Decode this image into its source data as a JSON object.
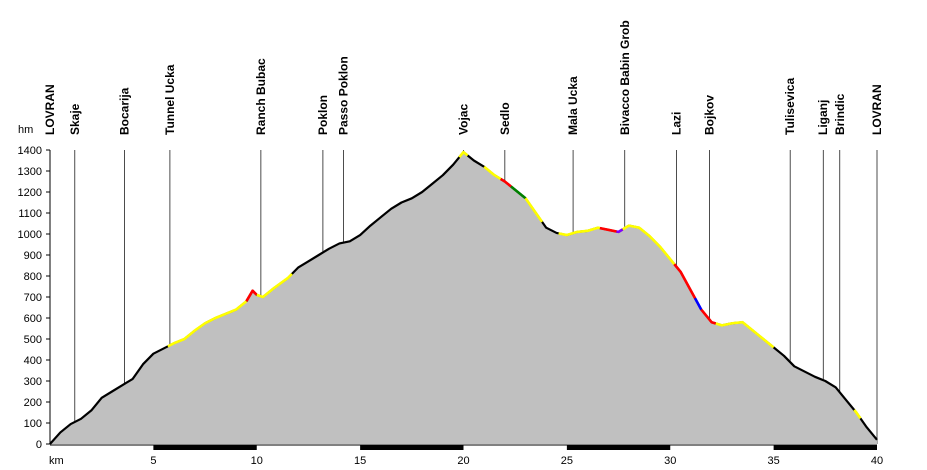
{
  "chart_data": {
    "type": "area",
    "title": "",
    "xlabel": "km",
    "ylabel": "hm",
    "xlim": [
      0,
      40
    ],
    "ylim": [
      0,
      1400
    ],
    "x_ticks": [
      5,
      10,
      15,
      20,
      25,
      30,
      35,
      40
    ],
    "y_ticks": [
      0,
      100,
      200,
      300,
      400,
      500,
      600,
      700,
      800,
      900,
      1000,
      1100,
      1200,
      1300,
      1400
    ],
    "grid": false,
    "fill_color": "#c0c0c0",
    "line_color": "#000000",
    "profile": [
      {
        "x": 0.0,
        "y": 0
      },
      {
        "x": 0.5,
        "y": 55
      },
      {
        "x": 1.0,
        "y": 95
      },
      {
        "x": 1.5,
        "y": 120
      },
      {
        "x": 2.0,
        "y": 160
      },
      {
        "x": 2.5,
        "y": 220
      },
      {
        "x": 3.0,
        "y": 250
      },
      {
        "x": 3.5,
        "y": 280
      },
      {
        "x": 4.0,
        "y": 310
      },
      {
        "x": 4.5,
        "y": 380
      },
      {
        "x": 5.0,
        "y": 430
      },
      {
        "x": 5.5,
        "y": 455
      },
      {
        "x": 6.0,
        "y": 480
      },
      {
        "x": 6.5,
        "y": 500
      },
      {
        "x": 7.0,
        "y": 540
      },
      {
        "x": 7.5,
        "y": 575
      },
      {
        "x": 8.0,
        "y": 600
      },
      {
        "x": 8.5,
        "y": 620
      },
      {
        "x": 9.0,
        "y": 640
      },
      {
        "x": 9.5,
        "y": 680
      },
      {
        "x": 9.8,
        "y": 730
      },
      {
        "x": 10.0,
        "y": 710
      },
      {
        "x": 10.3,
        "y": 700
      },
      {
        "x": 10.8,
        "y": 740
      },
      {
        "x": 11.5,
        "y": 790
      },
      {
        "x": 12.0,
        "y": 840
      },
      {
        "x": 12.5,
        "y": 870
      },
      {
        "x": 13.0,
        "y": 900
      },
      {
        "x": 13.5,
        "y": 930
      },
      {
        "x": 14.0,
        "y": 955
      },
      {
        "x": 14.5,
        "y": 965
      },
      {
        "x": 15.0,
        "y": 995
      },
      {
        "x": 15.5,
        "y": 1040
      },
      {
        "x": 16.0,
        "y": 1080
      },
      {
        "x": 16.5,
        "y": 1120
      },
      {
        "x": 17.0,
        "y": 1150
      },
      {
        "x": 17.5,
        "y": 1170
      },
      {
        "x": 18.0,
        "y": 1200
      },
      {
        "x": 18.5,
        "y": 1240
      },
      {
        "x": 19.0,
        "y": 1280
      },
      {
        "x": 19.5,
        "y": 1330
      },
      {
        "x": 20.0,
        "y": 1390
      },
      {
        "x": 20.5,
        "y": 1350
      },
      {
        "x": 21.0,
        "y": 1320
      },
      {
        "x": 21.5,
        "y": 1280
      },
      {
        "x": 22.0,
        "y": 1250
      },
      {
        "x": 22.5,
        "y": 1210
      },
      {
        "x": 23.0,
        "y": 1170
      },
      {
        "x": 23.5,
        "y": 1100
      },
      {
        "x": 24.0,
        "y": 1030
      },
      {
        "x": 24.5,
        "y": 1005
      },
      {
        "x": 25.0,
        "y": 995
      },
      {
        "x": 25.5,
        "y": 1010
      },
      {
        "x": 26.0,
        "y": 1015
      },
      {
        "x": 26.5,
        "y": 1030
      },
      {
        "x": 27.0,
        "y": 1020
      },
      {
        "x": 27.5,
        "y": 1010
      },
      {
        "x": 28.0,
        "y": 1040
      },
      {
        "x": 28.5,
        "y": 1030
      },
      {
        "x": 29.0,
        "y": 990
      },
      {
        "x": 29.5,
        "y": 940
      },
      {
        "x": 30.0,
        "y": 880
      },
      {
        "x": 30.5,
        "y": 820
      },
      {
        "x": 31.0,
        "y": 730
      },
      {
        "x": 31.5,
        "y": 640
      },
      {
        "x": 32.0,
        "y": 580
      },
      {
        "x": 32.5,
        "y": 565
      },
      {
        "x": 33.0,
        "y": 575
      },
      {
        "x": 33.5,
        "y": 580
      },
      {
        "x": 34.0,
        "y": 540
      },
      {
        "x": 34.5,
        "y": 500
      },
      {
        "x": 35.0,
        "y": 460
      },
      {
        "x": 35.5,
        "y": 420
      },
      {
        "x": 36.0,
        "y": 370
      },
      {
        "x": 36.5,
        "y": 345
      },
      {
        "x": 37.0,
        "y": 320
      },
      {
        "x": 37.5,
        "y": 300
      },
      {
        "x": 38.0,
        "y": 270
      },
      {
        "x": 38.5,
        "y": 210
      },
      {
        "x": 39.0,
        "y": 150
      },
      {
        "x": 39.5,
        "y": 80
      },
      {
        "x": 40.0,
        "y": 20
      }
    ],
    "surface_segments": [
      {
        "from": 5.7,
        "to": 9.5,
        "color": "#ffff00"
      },
      {
        "from": 9.5,
        "to": 10.0,
        "color": "#ff0000"
      },
      {
        "from": 10.0,
        "to": 11.7,
        "color": "#ffff00"
      },
      {
        "from": 19.8,
        "to": 20.2,
        "color": "#ffff00"
      },
      {
        "from": 21.0,
        "to": 21.8,
        "color": "#ffff00"
      },
      {
        "from": 21.8,
        "to": 22.3,
        "color": "#ff0000"
      },
      {
        "from": 22.3,
        "to": 23.0,
        "color": "#008000"
      },
      {
        "from": 23.0,
        "to": 23.8,
        "color": "#ffff00"
      },
      {
        "from": 24.6,
        "to": 26.6,
        "color": "#ffff00"
      },
      {
        "from": 26.6,
        "to": 27.4,
        "color": "#ff0000"
      },
      {
        "from": 27.4,
        "to": 27.7,
        "color": "#8000ff"
      },
      {
        "from": 27.7,
        "to": 30.2,
        "color": "#ffff00"
      },
      {
        "from": 30.2,
        "to": 31.2,
        "color": "#ff0000"
      },
      {
        "from": 31.2,
        "to": 31.5,
        "color": "#0000ff"
      },
      {
        "from": 31.5,
        "to": 32.2,
        "color": "#ff0000"
      },
      {
        "from": 32.2,
        "to": 35.0,
        "color": "#ffff00"
      },
      {
        "from": 38.9,
        "to": 39.2,
        "color": "#ffff00"
      }
    ],
    "waypoints": [
      {
        "name": "LOVRAN",
        "x": 0.0
      },
      {
        "name": "Skaje",
        "x": 1.2
      },
      {
        "name": "Bocarija",
        "x": 3.6
      },
      {
        "name": "Tunnel Ucka",
        "x": 5.8
      },
      {
        "name": "Ranch Bubac",
        "x": 10.2
      },
      {
        "name": "Poklon",
        "x": 13.2
      },
      {
        "name": "Passo Poklon",
        "x": 14.2
      },
      {
        "name": "Vojac",
        "x": 20.0
      },
      {
        "name": "Sedlo",
        "x": 22.0
      },
      {
        "name": "Mala Ucka",
        "x": 25.3
      },
      {
        "name": "Bivacco Babin Grob",
        "x": 27.8
      },
      {
        "name": "Lazi",
        "x": 30.3
      },
      {
        "name": "Bojkov",
        "x": 31.9
      },
      {
        "name": "Tulisevica",
        "x": 35.8
      },
      {
        "name": "Liganj",
        "x": 37.4
      },
      {
        "name": "Brindic",
        "x": 38.2
      },
      {
        "name": "LOVRAN",
        "x": 40.0
      }
    ]
  }
}
